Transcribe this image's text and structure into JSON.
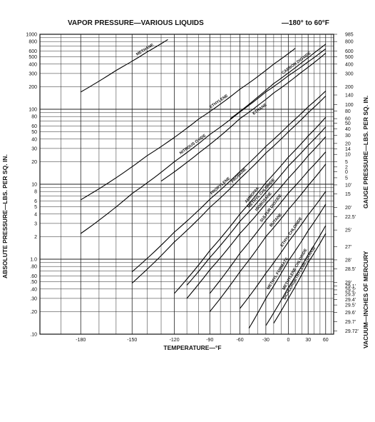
{
  "chart_data": {
    "type": "line",
    "title": "VAPOR PRESSURE—VARIOUS LIQUIDS",
    "subtitle": "—180° to 60°F",
    "xlabel": "TEMPERATURE—°F",
    "ylabel_left": "ABSOLUTE PRESSURE—LBS. PER SQ. IN.",
    "ylabel_right_top": "GAUGE PRESSURE—LBS. PER SQ. IN.",
    "ylabel_right_bottom": "VACUUM—INCHES OF MERCURY",
    "x_scale": "reciprocal absolute temperature",
    "y_scale": "log",
    "xlim": [
      -200,
      75
    ],
    "ylim": [
      0.1,
      1000
    ],
    "grid": true,
    "x_ticks": [
      "-180",
      "-150",
      "-120",
      "-90",
      "-60",
      "-30",
      "0",
      "30",
      "60"
    ],
    "left_ticks": [
      {
        "v": 1000,
        "t": "1000"
      },
      {
        "v": 800,
        "t": "800"
      },
      {
        "v": 600,
        "t": "600"
      },
      {
        "v": 500,
        "t": "500"
      },
      {
        "v": 400,
        "t": "400"
      },
      {
        "v": 300,
        "t": "300"
      },
      {
        "v": 200,
        "t": "200"
      },
      {
        "v": 100,
        "t": "100"
      },
      {
        "v": 80,
        "t": "80"
      },
      {
        "v": 60,
        "t": "60"
      },
      {
        "v": 50,
        "t": "50"
      },
      {
        "v": 40,
        "t": "40"
      },
      {
        "v": 30,
        "t": "30"
      },
      {
        "v": 20,
        "t": "20"
      },
      {
        "v": 10,
        "t": "10"
      },
      {
        "v": 8,
        "t": "8"
      },
      {
        "v": 6,
        "t": "6"
      },
      {
        "v": 5,
        "t": "5"
      },
      {
        "v": 4,
        "t": "4"
      },
      {
        "v": 3,
        "t": "3"
      },
      {
        "v": 2,
        "t": "2"
      },
      {
        "v": 1,
        "t": "1.0"
      },
      {
        "v": 0.8,
        "t": ".80"
      },
      {
        "v": 0.6,
        "t": ".60"
      },
      {
        "v": 0.5,
        "t": ".50"
      },
      {
        "v": 0.4,
        "t": ".40"
      },
      {
        "v": 0.3,
        "t": ".30"
      },
      {
        "v": 0.2,
        "t": ".20"
      },
      {
        "v": 0.1,
        "t": ".10"
      }
    ],
    "right_ticks": [
      {
        "v": 1000,
        "t": "985"
      },
      {
        "v": 800,
        "t": "800"
      },
      {
        "v": 600,
        "t": "600"
      },
      {
        "v": 500,
        "t": "500"
      },
      {
        "v": 400,
        "t": "400"
      },
      {
        "v": 300,
        "t": "300"
      },
      {
        "v": 200,
        "t": "200"
      },
      {
        "v": 155,
        "t": "140"
      },
      {
        "v": 115,
        "t": "100"
      },
      {
        "v": 95,
        "t": "80"
      },
      {
        "v": 75,
        "t": "60"
      },
      {
        "v": 65,
        "t": "50"
      },
      {
        "v": 55,
        "t": "40"
      },
      {
        "v": 45,
        "t": "30"
      },
      {
        "v": 35,
        "t": "20"
      },
      {
        "v": 29.7,
        "t": "14"
      },
      {
        "v": 25,
        "t": "10"
      },
      {
        "v": 20,
        "t": "5"
      },
      {
        "v": 17,
        "t": "2"
      },
      {
        "v": 14.7,
        "t": "0"
      },
      {
        "v": 12.2,
        "t": "5"
      },
      {
        "v": 9.8,
        "t": "10'"
      },
      {
        "v": 7.4,
        "t": "15"
      },
      {
        "v": 4.9,
        "t": "20'"
      },
      {
        "v": 3.7,
        "t": "22.5'"
      },
      {
        "v": 2.45,
        "t": "25'"
      },
      {
        "v": 1.47,
        "t": "27'"
      },
      {
        "v": 0.98,
        "t": "28'"
      },
      {
        "v": 0.74,
        "t": "28.5'"
      },
      {
        "v": 0.49,
        "t": "29'"
      },
      {
        "v": 0.44,
        "t": "29.1'"
      },
      {
        "v": 0.39,
        "t": "29.2'"
      },
      {
        "v": 0.34,
        "t": "29.3'"
      },
      {
        "v": 0.29,
        "t": "29.4'"
      },
      {
        "v": 0.245,
        "t": "29.5'"
      },
      {
        "v": 0.196,
        "t": "29.6'"
      },
      {
        "v": 0.147,
        "t": "29.7'"
      },
      {
        "v": 0.11,
        "t": "29.72'"
      }
    ],
    "series": [
      {
        "name": "METHANE",
        "x": [
          -180,
          -160,
          -140,
          -125
        ],
        "y": [
          170,
          330,
          580,
          850
        ]
      },
      {
        "name": "ETHYLENE",
        "x": [
          -180,
          -140,
          -100,
          -60,
          -20,
          10
        ],
        "y": [
          6.2,
          24,
          74,
          185,
          400,
          650
        ]
      },
      {
        "name": "CARBON DIOXIDE",
        "x": [
          -70,
          -40,
          -20,
          0,
          20,
          40,
          60
        ],
        "y": [
          75,
          145,
          220,
          305,
          420,
          565,
          740
        ]
      },
      {
        "name": "ETHANE",
        "x": [
          -130,
          -100,
          -60,
          -20,
          20,
          60
        ],
        "y": [
          11,
          26,
          75,
          165,
          315,
          560
        ]
      },
      {
        "name": "NITROUS OXIDE",
        "x": [
          -180,
          -150,
          -120,
          -90,
          -60,
          -30,
          0,
          30,
          60
        ],
        "y": [
          2.2,
          7.5,
          20,
          46,
          92,
          170,
          280,
          430,
          640
        ]
      },
      {
        "name": "PROPYLENE",
        "x": [
          -150,
          -120,
          -90,
          -60,
          -30,
          0,
          30,
          60
        ],
        "y": [
          0.68,
          2.3,
          6.3,
          14.8,
          32,
          61,
          108,
          175
        ]
      },
      {
        "name": "PROPANE",
        "x": [
          -150,
          -120,
          -90,
          -60,
          -30,
          0,
          30,
          60
        ],
        "y": [
          0.48,
          1.7,
          4.9,
          11.8,
          26,
          50,
          90,
          150
        ]
      },
      {
        "name": "AMMONIA",
        "x": [
          -120,
          -90,
          -60,
          -30,
          0,
          30,
          60
        ],
        "y": [
          0.35,
          1.3,
          4,
          10.5,
          23,
          44,
          78
        ]
      },
      {
        "name": "METHYL CHLORIDE",
        "x": [
          -110,
          -90,
          -60,
          -30,
          0,
          30,
          60
        ],
        "y": [
          0.45,
          1.05,
          3.2,
          7.8,
          17.5,
          33,
          58
        ]
      },
      {
        "name": "ISOBUTANE",
        "x": [
          -110,
          -90,
          -60,
          -30,
          0,
          30,
          60
        ],
        "y": [
          0.3,
          0.72,
          2.2,
          5.5,
          12,
          24,
          43
        ]
      },
      {
        "name": "SULFUR DIOXIDE",
        "x": [
          -90,
          -60,
          -30,
          0,
          30,
          60
        ],
        "y": [
          0.35,
          1.2,
          3.3,
          7.6,
          15,
          27
        ]
      },
      {
        "name": "BUTANE",
        "x": [
          -90,
          -60,
          -30,
          0,
          30,
          60
        ],
        "y": [
          0.2,
          0.68,
          2,
          4.6,
          9.6,
          18.5
        ]
      },
      {
        "name": "ETHYL CHLORIDE",
        "x": [
          -60,
          -30,
          0,
          30,
          60
        ],
        "y": [
          0.22,
          0.65,
          1.7,
          3.9,
          8
        ]
      },
      {
        "name": "METHYL FORMATE",
        "x": [
          -50,
          -30,
          0,
          30,
          60
        ],
        "y": [
          0.12,
          0.3,
          0.95,
          2.4,
          5.4
        ]
      },
      {
        "name": "METHYLENE CHLORIDE",
        "x": [
          -30,
          0,
          30,
          60
        ],
        "y": [
          0.13,
          0.42,
          1.15,
          2.8
        ]
      },
      {
        "name": "DICHLOROETHYLENE (TRANS)",
        "x": [
          -20,
          0,
          30,
          60
        ],
        "y": [
          0.14,
          0.3,
          0.9,
          2.2
        ]
      }
    ]
  }
}
